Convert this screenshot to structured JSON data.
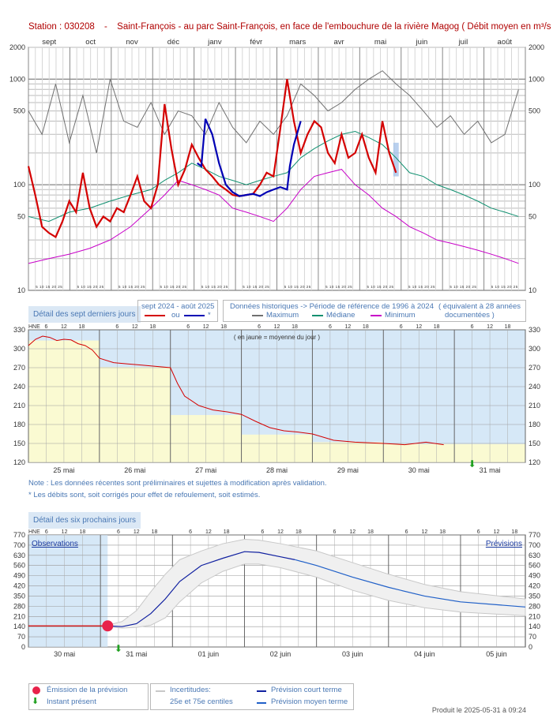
{
  "header": {
    "station": "Station : 030208",
    "dash": "-",
    "description": "Saint-François - au parc Saint-François, en face de l'embouchure de la rivière Magog",
    "unit": "( Débit moyen en m³/s )"
  },
  "tabs": {
    "last7": "Détail des sept derniers jours",
    "next6": "Détail des six prochains jours"
  },
  "legend_top": {
    "period": "sept 2024 - août 2025",
    "ou": "ou",
    "star": "*",
    "hist_title": "Données historiques -> Période de référence  de 1996 à 2024",
    "equiv": "( équivalent à 28 années",
    "documented": "documentées )",
    "max": "Maximum",
    "median": "Médiane",
    "min": "Minimum"
  },
  "notes": {
    "note1": "Note : Les données récentes sont préliminaires et sujettes à modification après validation.",
    "note2": "* Les débits sont, soit corrigés pour effet de refoulement, soit estimés."
  },
  "legend_bottom": {
    "emission": "Émission de la prévision",
    "present": "Instant présent",
    "uncert": "Incertitudes:",
    "centiles": "25e et 75e centiles",
    "short": "Prévision court terme",
    "medium": "Prévision moyen terme"
  },
  "produced": "Produit le 2025-05-31 à 09:24",
  "colors": {
    "observed": "#d40000",
    "corrected": "#0000b4",
    "maximum": "#707070",
    "median": "#109070",
    "minimum": "#c800c8",
    "short_term": "#1020a0",
    "medium_term": "#2060c8",
    "accent": "#4a78b4",
    "emission": "#e8224a",
    "present": "#20a020"
  },
  "chart_data": [
    {
      "id": "annual",
      "type": "line",
      "scale": "log",
      "ylim": [
        10,
        2000
      ],
      "yticks": [
        "10",
        "50",
        "100",
        "500",
        "1000",
        "2000"
      ],
      "months": [
        "sept",
        "oct",
        "nov",
        "déc",
        "janv",
        "févr",
        "mars",
        "avr",
        "mai",
        "juin",
        "juil",
        "août"
      ],
      "day_ticks": "5 10 15 20 25",
      "series": [
        {
          "name": "Maximum",
          "x": [
            0,
            10,
            20,
            30,
            40,
            50,
            60,
            70,
            80,
            90,
            100,
            110,
            120,
            130,
            140,
            150,
            160,
            170,
            180,
            190,
            200,
            210,
            220,
            230,
            240,
            250,
            260,
            270,
            280,
            290,
            300,
            310,
            320,
            330,
            340,
            350,
            360
          ],
          "y": [
            500,
            300,
            900,
            250,
            700,
            200,
            1000,
            400,
            350,
            600,
            300,
            500,
            450,
            300,
            600,
            350,
            250,
            400,
            300,
            450,
            900,
            700,
            500,
            600,
            800,
            1000,
            1200,
            900,
            700,
            500,
            350,
            450,
            300,
            400,
            250,
            300,
            800
          ]
        },
        {
          "name": "Médiane",
          "x": [
            0,
            15,
            30,
            45,
            60,
            75,
            90,
            100,
            110,
            120,
            130,
            140,
            150,
            160,
            170,
            180,
            190,
            200,
            210,
            220,
            230,
            240,
            250,
            260,
            270,
            280,
            290,
            300,
            310,
            320,
            330,
            340,
            350,
            360
          ],
          "y": [
            50,
            45,
            55,
            60,
            70,
            80,
            90,
            110,
            130,
            160,
            140,
            120,
            110,
            100,
            110,
            120,
            130,
            180,
            220,
            260,
            300,
            320,
            280,
            240,
            180,
            130,
            120,
            100,
            90,
            80,
            70,
            60,
            55,
            50
          ]
        },
        {
          "name": "Minimum",
          "x": [
            0,
            15,
            30,
            45,
            60,
            75,
            90,
            100,
            110,
            120,
            130,
            140,
            150,
            160,
            170,
            180,
            190,
            200,
            210,
            220,
            230,
            240,
            250,
            260,
            270,
            280,
            290,
            300,
            310,
            320,
            330,
            340,
            350,
            360
          ],
          "y": [
            18,
            20,
            22,
            25,
            30,
            40,
            60,
            80,
            110,
            100,
            90,
            80,
            60,
            55,
            50,
            45,
            60,
            90,
            120,
            130,
            140,
            100,
            80,
            60,
            50,
            40,
            35,
            30,
            28,
            26,
            24,
            22,
            20,
            18
          ]
        },
        {
          "name": "sept 2024 - août 2025",
          "x": [
            0,
            5,
            10,
            15,
            20,
            25,
            30,
            35,
            40,
            45,
            50,
            55,
            60,
            65,
            70,
            75,
            80,
            85,
            90,
            95,
            100,
            105,
            110,
            115,
            120,
            125,
            130,
            135,
            140,
            145,
            150,
            155,
            160,
            165,
            170,
            175,
            180,
            185,
            190,
            195,
            200,
            205,
            210,
            215,
            220,
            225,
            230,
            235,
            240,
            245,
            250,
            255,
            260,
            265,
            270
          ],
          "y": [
            150,
            80,
            40,
            35,
            32,
            45,
            70,
            55,
            130,
            60,
            40,
            50,
            45,
            60,
            55,
            80,
            120,
            70,
            60,
            100,
            580,
            220,
            100,
            140,
            240,
            180,
            140,
            120,
            100,
            90,
            80,
            78,
            80,
            82,
            100,
            130,
            120,
            340,
            1000,
            400,
            200,
            300,
            400,
            350,
            200,
            160,
            300,
            180,
            200,
            300,
            180,
            130,
            400,
            200,
            130
          ]
        },
        {
          "name": "*",
          "x": [
            124,
            127,
            130,
            135,
            140,
            145,
            150,
            155,
            160,
            165,
            170,
            175,
            180,
            185,
            190,
            192,
            195,
            200
          ],
          "y": [
            160,
            150,
            420,
            300,
            160,
            100,
            85,
            78,
            80,
            82,
            78,
            85,
            90,
            95,
            90,
            150,
            240,
            400
          ]
        }
      ]
    },
    {
      "id": "last7",
      "type": "line",
      "ylim": [
        120,
        330
      ],
      "yticks": [
        "120",
        "150",
        "180",
        "210",
        "240",
        "270",
        "300",
        "330"
      ],
      "hour_ticks": [
        "6",
        "12",
        "18"
      ],
      "days": [
        "25 mai",
        "26 mai",
        "27 mai",
        "28 mai",
        "29 mai",
        "30 mai",
        "31 mai"
      ],
      "annotation": "( en jaune = moyenne du jour )",
      "daily_mean": [
        313,
        271,
        195,
        164,
        152,
        149,
        149
      ],
      "x": [
        0,
        0.1,
        0.2,
        0.3,
        0.4,
        0.5,
        0.6,
        0.7,
        0.8,
        0.9,
        1.0,
        1.2,
        1.4,
        1.6,
        1.8,
        2.0,
        2.1,
        2.2,
        2.4,
        2.6,
        2.8,
        3.0,
        3.2,
        3.4,
        3.6,
        3.8,
        4.0,
        4.3,
        4.6,
        5.0,
        5.3,
        5.6,
        5.85
      ],
      "y": [
        305,
        315,
        320,
        318,
        313,
        315,
        314,
        308,
        305,
        298,
        285,
        278,
        276,
        274,
        272,
        270,
        245,
        225,
        210,
        203,
        200,
        196,
        185,
        175,
        170,
        168,
        165,
        155,
        152,
        150,
        148,
        152,
        148
      ]
    },
    {
      "id": "forecast",
      "type": "line",
      "ylim": [
        0,
        770
      ],
      "yticks": [
        "0",
        "70",
        "140",
        "210",
        "280",
        "350",
        "420",
        "490",
        "560",
        "630",
        "700",
        "770"
      ],
      "hour_ticks": [
        "6",
        "12",
        "18"
      ],
      "days": [
        "30 mai",
        "31 mai",
        "01 juin",
        "02 juin",
        "03 juin",
        "04 juin",
        "05 juin"
      ],
      "observed_label": "Observations",
      "forecast_label": "Prévisions",
      "observed": {
        "x": [
          0,
          1.1
        ],
        "y": [
          145,
          145
        ]
      },
      "short_term": {
        "x": [
          1.1,
          1.3,
          1.5,
          1.7,
          1.9,
          2.1,
          2.4,
          2.7,
          3.0,
          3.2,
          3.5,
          3.7
        ],
        "y": [
          145,
          140,
          160,
          230,
          330,
          450,
          560,
          610,
          655,
          650,
          620,
          600
        ]
      },
      "medium_term": {
        "x": [
          3.7,
          4.0,
          4.5,
          5.0,
          5.5,
          6.0,
          6.9
        ],
        "y": [
          600,
          560,
          480,
          410,
          350,
          310,
          275
        ]
      },
      "p75": {
        "x": [
          1.1,
          1.3,
          1.5,
          1.7,
          1.9,
          2.1,
          2.4,
          2.7,
          3.0,
          3.2,
          3.5,
          4.0,
          4.5,
          5.0,
          5.5,
          6.0,
          6.9
        ],
        "y": [
          150,
          175,
          250,
          380,
          500,
          600,
          660,
          710,
          740,
          735,
          710,
          660,
          580,
          500,
          430,
          380,
          330
        ]
      },
      "p25": {
        "x": [
          1.1,
          1.3,
          1.5,
          1.7,
          1.9,
          2.1,
          2.4,
          2.7,
          3.0,
          3.2,
          3.5,
          4.0,
          4.5,
          5.0,
          5.5,
          6.0,
          6.9
        ],
        "y": [
          140,
          130,
          135,
          150,
          200,
          310,
          440,
          520,
          570,
          570,
          545,
          480,
          390,
          320,
          270,
          240,
          215
        ]
      },
      "emission": {
        "x": 1.1,
        "y": 145
      }
    }
  ]
}
